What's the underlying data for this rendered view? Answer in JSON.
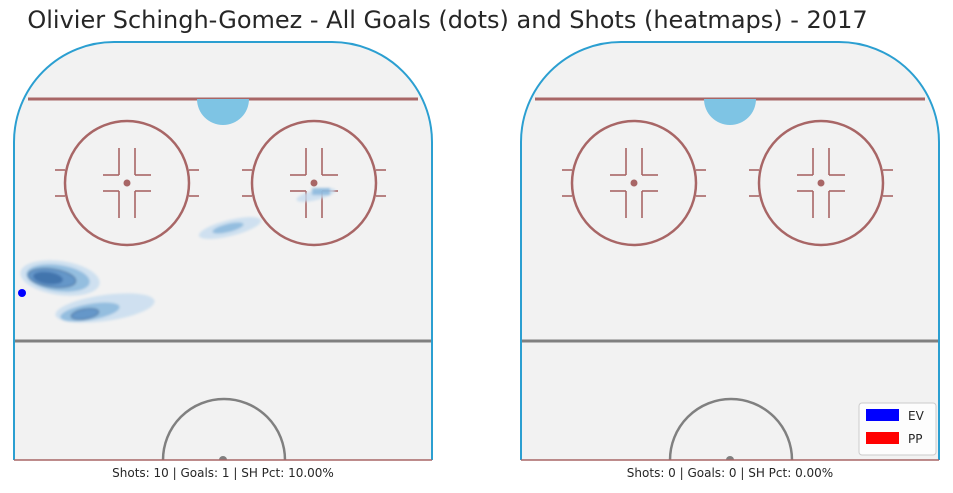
{
  "title": "Olivier Schingh-Gomez - All Goals (dots) and Shots (heatmaps) - 2017",
  "colors": {
    "ice": "#f2f2f2",
    "boards": "#2b9fd1",
    "red_line": "#a86666",
    "center_line": "#808080",
    "crease": "#7ec4e4",
    "heat_light": "#c6dcef",
    "heat_mid": "#7fb1d9",
    "heat_dark": "#3d6fa8",
    "goal_ev": "#0000ff",
    "goal_pp": "#ff0000"
  },
  "chart_data": [
    {
      "type": "heatmap",
      "panel": "left",
      "caption": "Shots: 10 | Goals: 1 | SH Pct: 10.00%",
      "shots": 10,
      "goals": 1,
      "sh_pct": "10.00%",
      "goal_points": [
        {
          "x": 0.02,
          "y": 0.6,
          "strength": "EV"
        }
      ],
      "shot_clusters": [
        {
          "x": 0.1,
          "y": 0.56,
          "intensity": 1.0
        },
        {
          "x": 0.21,
          "y": 0.65,
          "intensity": 0.6
        },
        {
          "x": 0.52,
          "y": 0.44,
          "intensity": 0.35
        },
        {
          "x": 0.72,
          "y": 0.37,
          "intensity": 0.3
        }
      ]
    },
    {
      "type": "heatmap",
      "panel": "right",
      "caption": "Shots: 0 | Goals: 0 | SH Pct: 0.00%",
      "shots": 0,
      "goals": 0,
      "sh_pct": "0.00%",
      "goal_points": [],
      "shot_clusters": []
    }
  ],
  "legend": {
    "placement": "bottom-right",
    "entries": [
      {
        "label": "EV",
        "color": "#0000ff"
      },
      {
        "label": "PP",
        "color": "#ff0000"
      }
    ]
  }
}
